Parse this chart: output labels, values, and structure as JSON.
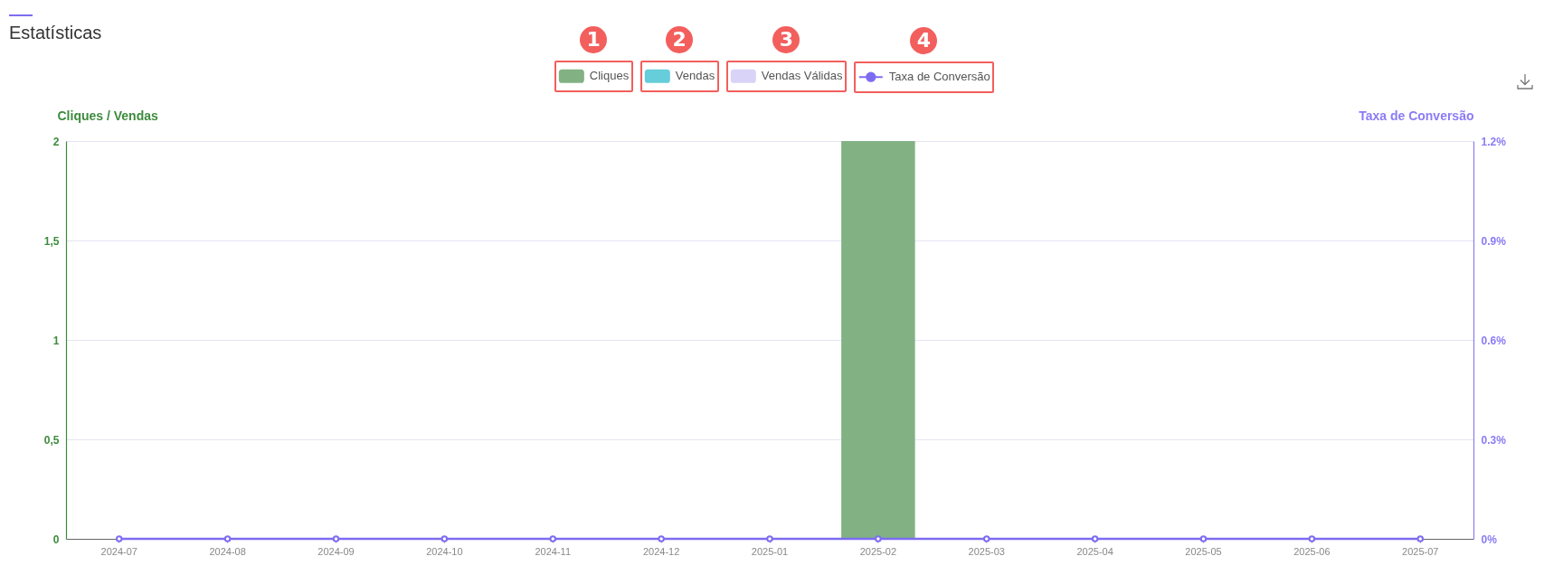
{
  "chart_data": {
    "type": "bar",
    "title": "Estatísticas",
    "ylabel": "Cliques / Vendas",
    "y2label": "Taxa de Conversão",
    "annotations": [
      "1",
      "2",
      "3",
      "4"
    ],
    "categories": [
      "2024-07",
      "2024-08",
      "2024-09",
      "2024-10",
      "2024-11",
      "2024-12",
      "2025-01",
      "2025-02",
      "2025-03",
      "2025-04",
      "2025-05",
      "2025-06",
      "2025-07"
    ],
    "series": [
      {
        "name": "Cliques",
        "color": "#82b183",
        "values": [
          0,
          0,
          0,
          0,
          0,
          0,
          0,
          2,
          0,
          0,
          0,
          0,
          0
        ]
      },
      {
        "name": "Vendas",
        "color": "#66cdda",
        "values": [
          0,
          0,
          0,
          0,
          0,
          0,
          0,
          0,
          0,
          0,
          0,
          0,
          0
        ]
      },
      {
        "name": "Vendas Válidas",
        "color": "#d9d3f8",
        "values": [
          0,
          0,
          0,
          0,
          0,
          0,
          0,
          0,
          0,
          0,
          0,
          0,
          0
        ]
      },
      {
        "name": "Taxa de Conversão",
        "type": "line",
        "axis": "y2",
        "color": "#7d6cf2",
        "values": [
          0,
          0,
          0,
          0,
          0,
          0,
          0,
          0,
          0,
          0,
          0,
          0,
          0
        ]
      }
    ],
    "stacked": true,
    "ylim": [
      0,
      2
    ],
    "yticks": [
      0,
      {
        "value": 0.5,
        "label": "0,5"
      },
      1,
      {
        "value": 1.5,
        "label": "1,5"
      },
      2
    ],
    "y2lim": [
      0,
      1.2
    ],
    "y2ticks": [
      {
        "value": 0,
        "label": "0%"
      },
      {
        "value": 0.3,
        "label": "0.3%"
      },
      {
        "value": 0.6,
        "label": "0.6%"
      },
      {
        "value": 0.9,
        "label": "0.9%"
      },
      {
        "value": 1.2,
        "label": "1.2%"
      }
    ],
    "grid": "y",
    "legend": "top",
    "marker": "circle"
  }
}
